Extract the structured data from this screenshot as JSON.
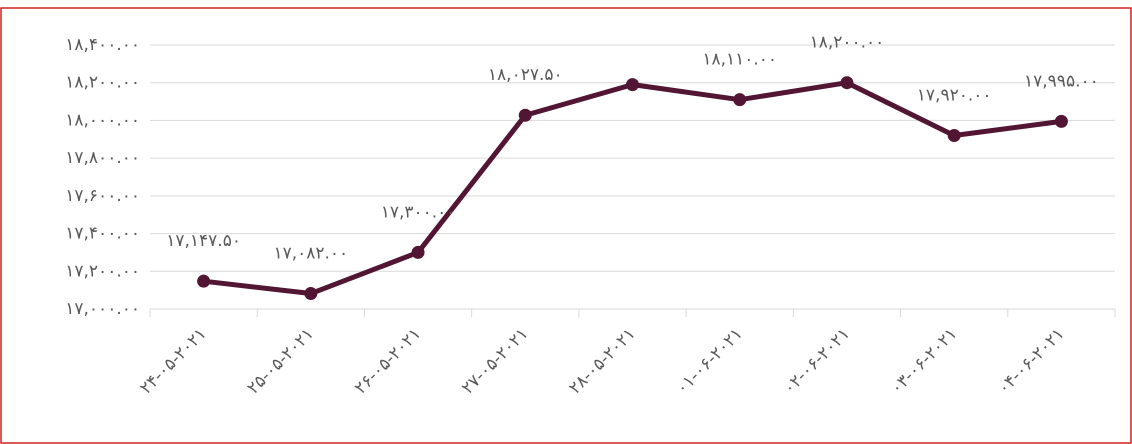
{
  "chart_data": {
    "type": "line",
    "categories": [
      "۲۴-۰۵-۲۰۲۱",
      "۲۵-۰۵-۲۰۲۱",
      "۲۶-۰۵-۲۰۲۱",
      "۲۷-۰۵-۲۰۲۱",
      "۲۸-۰۵-۲۰۲۱",
      "۰۱-۰۶-۲۰۲۱",
      "۰۲-۰۶-۲۰۲۱",
      "۰۳-۰۶-۲۰۲۱",
      "۰۴-۰۶-۲۰۲۱"
    ],
    "series": [
      {
        "color": "#521634",
        "values": [
          17147.5,
          17082,
          17300,
          18027.5,
          18190,
          18110,
          18200,
          17920,
          17995
        ],
        "value_labels": [
          "۱۷,۱۴۷.۵۰",
          "۱۷,۰۸۲.۰۰",
          "۱۷,۳۰۰.۰۰",
          "۱۸,۰۲۷.۵۰",
          null,
          "۱۸,۱۱۰.۰۰",
          "۱۸,۲۰۰.۰۰",
          "۱۷,۹۲۰.۰۰",
          "۱۷,۹۹۵.۰۰"
        ]
      }
    ],
    "ylim": [
      17000,
      18400
    ],
    "yticks": [
      {
        "value": 17000,
        "label": "۱۷,۰۰۰.۰۰"
      },
      {
        "value": 17200,
        "label": "۱۷,۲۰۰.۰۰"
      },
      {
        "value": 17400,
        "label": "۱۷,۴۰۰.۰۰"
      },
      {
        "value": 17600,
        "label": "۱۷,۶۰۰.۰۰"
      },
      {
        "value": 17800,
        "label": "۱۷,۸۰۰.۰۰"
      },
      {
        "value": 18000,
        "label": "۱۸,۰۰۰.۰۰"
      },
      {
        "value": 18200,
        "label": "۱۸,۲۰۰.۰۰"
      },
      {
        "value": 18400,
        "label": "۱۸,۴۰۰.۰۰"
      }
    ],
    "grid": true
  }
}
